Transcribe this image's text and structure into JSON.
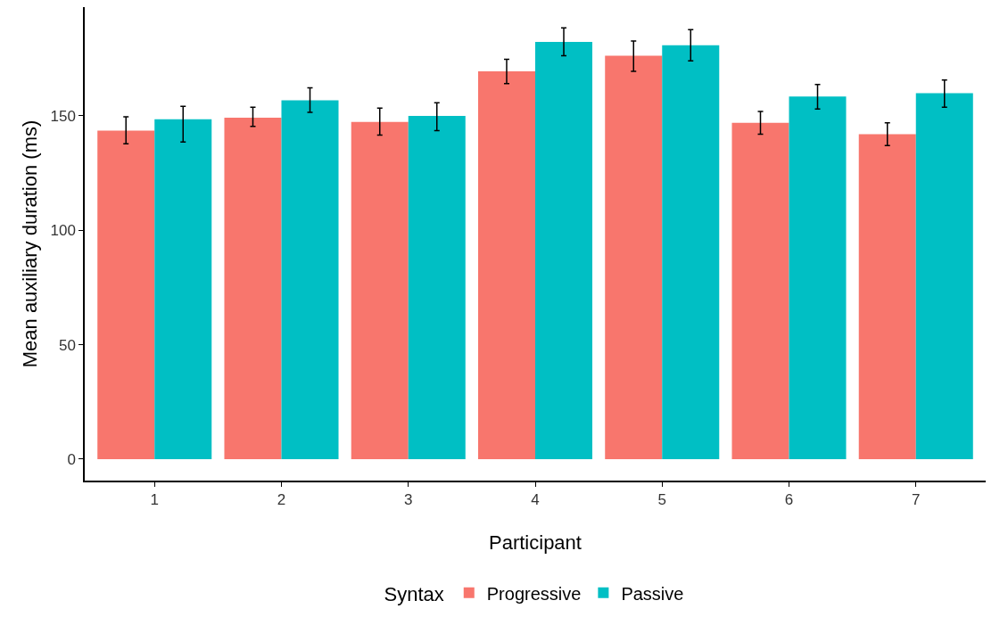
{
  "chart_data": {
    "type": "bar",
    "xlabel": "Participant",
    "ylabel": "Mean auxiliary duration (ms)",
    "legend_title": "Syntax",
    "categories": [
      "1",
      "2",
      "3",
      "4",
      "5",
      "6",
      "7"
    ],
    "series": [
      {
        "name": "Progressive",
        "color": "#f8766d",
        "values": [
          143.5,
          149.2,
          147.3,
          169.4,
          176.3,
          146.9,
          142.0
        ],
        "errors": [
          [
            137.8,
            149.6
          ],
          [
            145.4,
            153.8
          ],
          [
            141.6,
            153.4
          ],
          [
            164.1,
            174.7
          ],
          [
            169.4,
            182.7
          ],
          [
            142.0,
            151.9
          ],
          [
            137.0,
            146.9
          ]
        ]
      },
      {
        "name": "Passive",
        "color": "#00bfc4",
        "values": [
          148.5,
          156.8,
          150.0,
          182.3,
          180.8,
          158.4,
          159.9
        ],
        "errors": [
          [
            138.6,
            154.2
          ],
          [
            151.5,
            162.2
          ],
          [
            143.5,
            155.7
          ],
          [
            176.3,
            188.4
          ],
          [
            174.0,
            187.7
          ],
          [
            153.0,
            163.7
          ],
          [
            153.8,
            165.6
          ]
        ]
      }
    ],
    "ylim": [
      -9.4,
      197.5
    ],
    "yticks": [
      0,
      50,
      100,
      150
    ],
    "grid": false,
    "legend": "bottom"
  }
}
